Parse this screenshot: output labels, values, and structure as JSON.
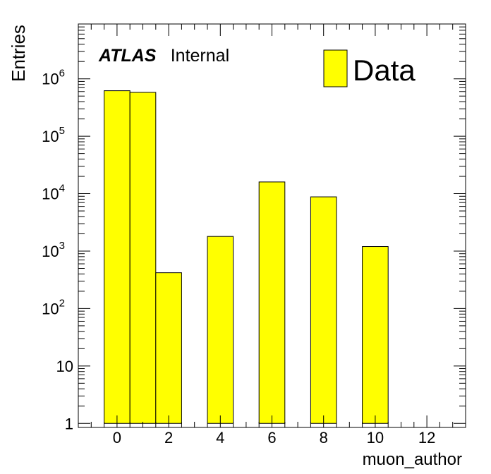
{
  "chart_data": {
    "type": "bar",
    "xlabel": "muon_author",
    "ylabel": "Entries",
    "x_tick_labels": [
      "0",
      "2",
      "4",
      "6",
      "8",
      "10",
      "12"
    ],
    "x_ticks": [
      0,
      2,
      4,
      6,
      8,
      10,
      12
    ],
    "xlim": [
      -1.5,
      13.5
    ],
    "ylim": [
      0.85,
      9000000
    ],
    "y_scale": "log",
    "y_ticks": [
      {
        "value": 1,
        "base": "1",
        "exp": ""
      },
      {
        "value": 10,
        "base": "10",
        "exp": ""
      },
      {
        "value": 100,
        "base": "10",
        "exp": "2"
      },
      {
        "value": 1000,
        "base": "10",
        "exp": "3"
      },
      {
        "value": 10000,
        "base": "10",
        "exp": "4"
      },
      {
        "value": 100000,
        "base": "10",
        "exp": "5"
      },
      {
        "value": 1000000,
        "base": "10",
        "exp": "6"
      }
    ],
    "bin_width": 1,
    "series": [
      {
        "name": "Data",
        "color": "#ffff00",
        "bins": [
          {
            "x": 0,
            "value": 620000
          },
          {
            "x": 1,
            "value": 580000
          },
          {
            "x": 2,
            "value": 420
          },
          {
            "x": 4,
            "value": 1800
          },
          {
            "x": 6,
            "value": 16000
          },
          {
            "x": 8,
            "value": 8800
          },
          {
            "x": 10,
            "value": 1200
          }
        ]
      }
    ],
    "legend": {
      "position": "top-right",
      "label": "Data"
    },
    "atlas_label": {
      "bold": "ATLAS",
      "text": "Internal"
    }
  }
}
